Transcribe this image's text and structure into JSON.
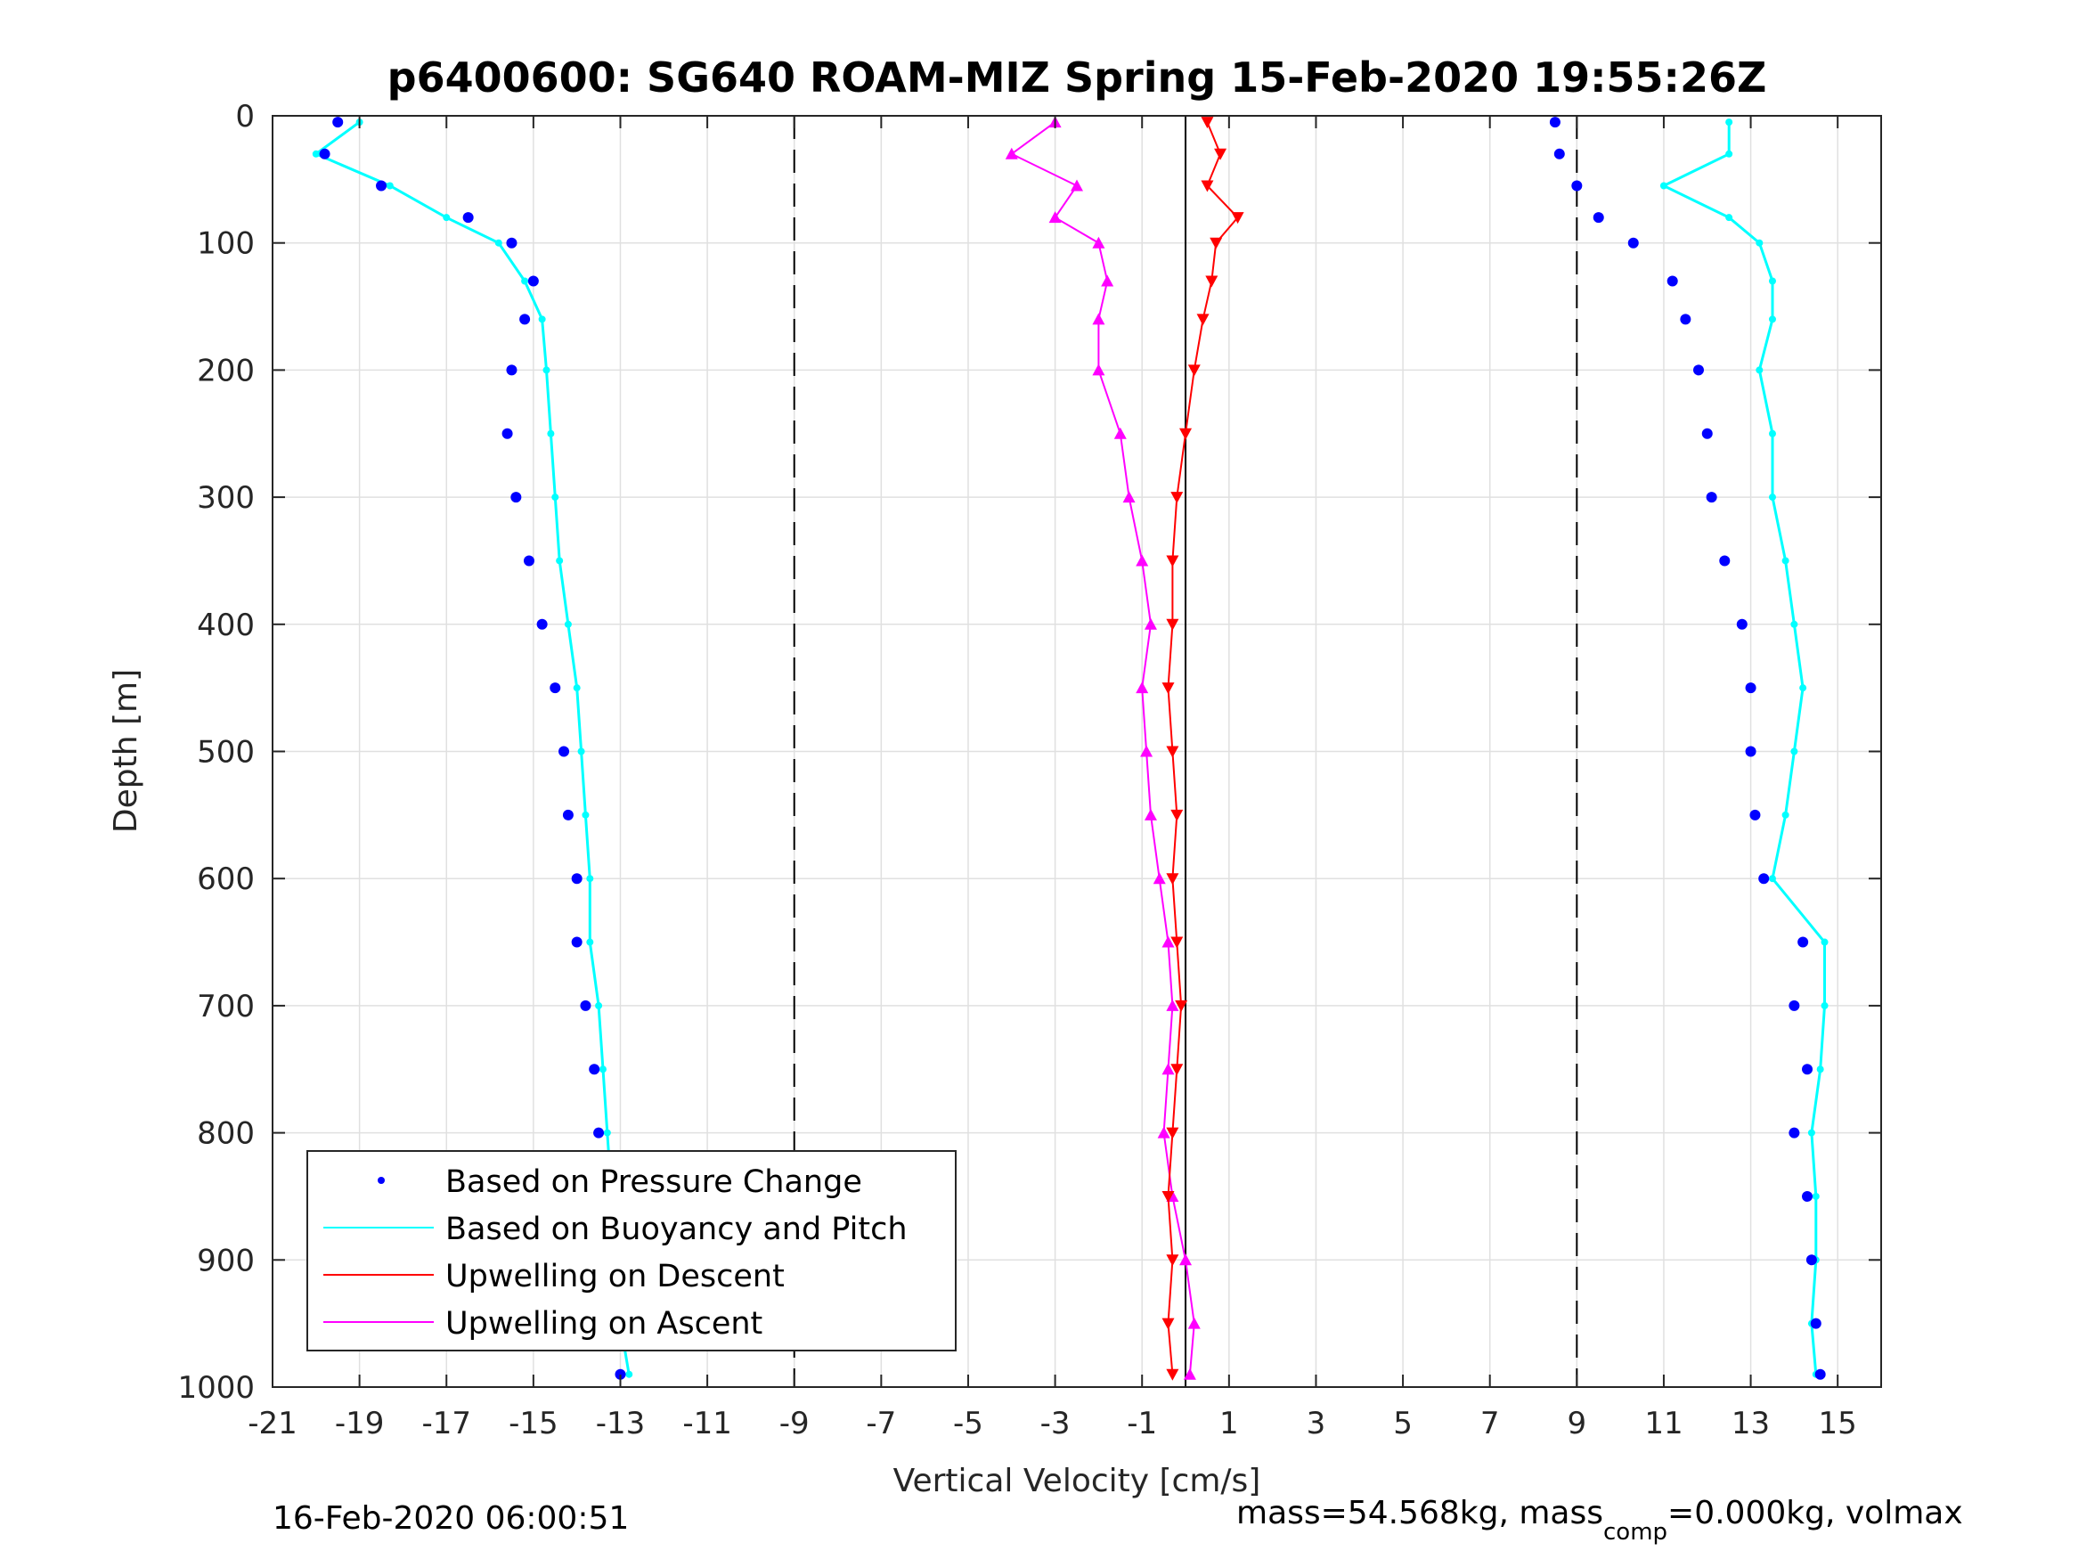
{
  "chart_data": {
    "type": "scatter",
    "title": "p6400600: SG640 ROAM-MIZ Spring 15-Feb-2020 19:55:26Z",
    "xlabel": "Vertical Velocity [cm/s]",
    "ylabel": "Depth [m]",
    "xlim": [
      -21,
      16
    ],
    "ylim": [
      0,
      1000
    ],
    "y_reversed": true,
    "grid": true,
    "x_ticks": [
      -21,
      -19,
      -17,
      -15,
      -13,
      -11,
      -9,
      -7,
      -5,
      -3,
      -1,
      1,
      3,
      5,
      7,
      9,
      11,
      13,
      15
    ],
    "y_ticks": [
      0,
      100,
      200,
      300,
      400,
      500,
      600,
      700,
      800,
      900,
      1000
    ],
    "reference_lines": [
      {
        "x": -9,
        "style": "dashed",
        "color": "#000000"
      },
      {
        "x": 9,
        "style": "dashed",
        "color": "#000000"
      },
      {
        "x": 0,
        "style": "solid",
        "color": "#000000"
      }
    ],
    "legend_placement": "bottom-left",
    "series": [
      {
        "name": "Based on Pressure Change",
        "color": "#0000ff",
        "marker": "dot",
        "descent": {
          "depth": [
            5,
            30,
            55,
            80,
            100,
            130,
            160,
            200,
            250,
            300,
            350,
            400,
            450,
            500,
            550,
            600,
            650,
            700,
            750,
            800,
            850,
            900,
            950,
            990
          ],
          "velocity": [
            -19.5,
            -19.8,
            -18.5,
            -16.5,
            -15.5,
            -15.0,
            -15.2,
            -15.5,
            -15.6,
            -15.4,
            -15.1,
            -14.8,
            -14.5,
            -14.3,
            -14.2,
            -14.0,
            -14.0,
            -13.8,
            -13.6,
            -13.5,
            -13.4,
            -13.3,
            -13.2,
            -13.0
          ]
        },
        "ascent": {
          "depth": [
            5,
            30,
            55,
            80,
            100,
            130,
            160,
            200,
            250,
            300,
            350,
            400,
            450,
            500,
            550,
            600,
            650,
            700,
            750,
            800,
            850,
            900,
            950,
            990
          ],
          "velocity": [
            8.5,
            8.6,
            9.0,
            9.5,
            10.3,
            11.2,
            11.5,
            11.8,
            12.0,
            12.1,
            12.4,
            12.8,
            13.0,
            13.0,
            13.1,
            13.3,
            14.2,
            14.0,
            14.3,
            14.0,
            14.3,
            14.4,
            14.5,
            14.6
          ]
        }
      },
      {
        "name": "Based on Buoyancy and Pitch",
        "color": "#00ffff",
        "marker": "line",
        "descent": {
          "depth": [
            5,
            30,
            55,
            80,
            100,
            130,
            160,
            200,
            250,
            300,
            350,
            400,
            450,
            500,
            550,
            600,
            650,
            700,
            750,
            800,
            850,
            900,
            950,
            990
          ],
          "velocity": [
            -19.0,
            -20.0,
            -18.3,
            -17.0,
            -15.8,
            -15.2,
            -14.8,
            -14.7,
            -14.6,
            -14.5,
            -14.4,
            -14.2,
            -14.0,
            -13.9,
            -13.8,
            -13.7,
            -13.7,
            -13.5,
            -13.4,
            -13.3,
            -13.2,
            -13.1,
            -13.0,
            -12.8
          ]
        },
        "ascent": {
          "depth": [
            5,
            30,
            55,
            80,
            100,
            130,
            160,
            200,
            250,
            300,
            350,
            400,
            450,
            500,
            550,
            600,
            650,
            700,
            750,
            800,
            850,
            900,
            950,
            990
          ],
          "velocity": [
            12.5,
            12.5,
            11.0,
            12.5,
            13.2,
            13.5,
            13.5,
            13.2,
            13.5,
            13.5,
            13.8,
            14.0,
            14.2,
            14.0,
            13.8,
            13.5,
            14.7,
            14.7,
            14.6,
            14.4,
            14.5,
            14.5,
            14.4,
            14.5
          ]
        }
      },
      {
        "name": "Upwelling on Descent",
        "color": "#ff0000",
        "marker": "triangle-down",
        "depth": [
          5,
          30,
          55,
          80,
          100,
          130,
          160,
          200,
          250,
          300,
          350,
          400,
          450,
          500,
          550,
          600,
          650,
          700,
          750,
          800,
          850,
          900,
          950,
          990
        ],
        "velocity": [
          0.5,
          0.8,
          0.5,
          1.2,
          0.7,
          0.6,
          0.4,
          0.2,
          0.0,
          -0.2,
          -0.3,
          -0.3,
          -0.4,
          -0.3,
          -0.2,
          -0.3,
          -0.2,
          -0.1,
          -0.2,
          -0.3,
          -0.4,
          -0.3,
          -0.4,
          -0.3
        ]
      },
      {
        "name": "Upwelling on Ascent",
        "color": "#ff00ff",
        "marker": "triangle-up",
        "depth": [
          5,
          30,
          55,
          80,
          100,
          130,
          160,
          200,
          250,
          300,
          350,
          400,
          450,
          500,
          550,
          600,
          650,
          700,
          750,
          800,
          850,
          900,
          950,
          990
        ],
        "velocity": [
          -3.0,
          -4.0,
          -2.5,
          -3.0,
          -2.0,
          -1.8,
          -2.0,
          -2.0,
          -1.5,
          -1.3,
          -1.0,
          -0.8,
          -1.0,
          -0.9,
          -0.8,
          -0.6,
          -0.4,
          -0.3,
          -0.4,
          -0.5,
          -0.3,
          0.0,
          0.2,
          0.1
        ]
      }
    ]
  },
  "legend": {
    "pressure": "Based on Pressure Change",
    "buoyancy": "Based on Buoyancy and Pitch",
    "upwell_descent": "Upwelling on Descent",
    "upwell_ascent": "Upwelling on Ascent"
  },
  "footer": {
    "timestamp": "16-Feb-2020 06:00:51",
    "mass_text": "mass=54.568kg, mass",
    "mass_sub": "comp",
    "mass_rest": "=0.000kg, volmax"
  }
}
